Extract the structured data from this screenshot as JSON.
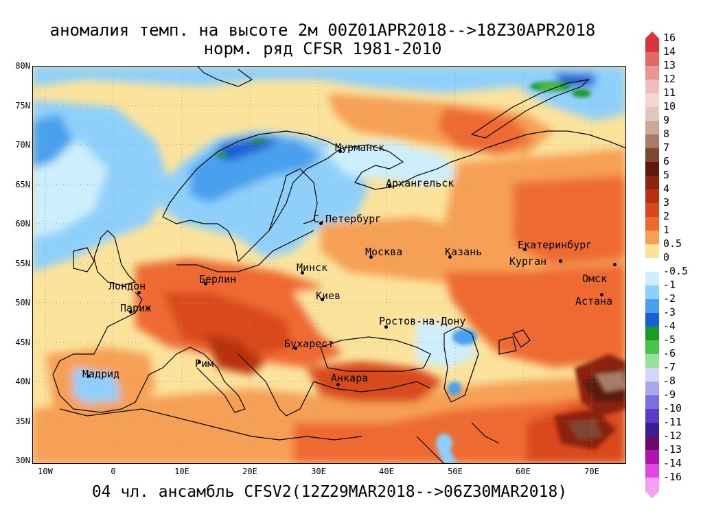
{
  "title": {
    "line1": "аномалия темп. на высоте 2м 00Z01APR2018-->18Z30APR2018",
    "line2": "норм. ряд CFSR 1981-2010"
  },
  "footer": "04 чл. ансамбль CFSV2(12Z29MAR2018-->06Z30MAR2018)",
  "lat_labels": [
    "80N",
    "75N",
    "70N",
    "65N",
    "60N",
    "55N",
    "50N",
    "45N",
    "40N",
    "35N",
    "30N"
  ],
  "lon_labels": [
    "10W",
    "0",
    "10E",
    "20E",
    "30E",
    "40E",
    "50E",
    "60E",
    "70E"
  ],
  "cities": [
    {
      "name": "Мурманск"
    },
    {
      "name": "Архангельск"
    },
    {
      "name": "С.Петербург"
    },
    {
      "name": "Москва"
    },
    {
      "name": "Казань"
    },
    {
      "name": "Екатеринбург"
    },
    {
      "name": "Курган"
    },
    {
      "name": "Омск"
    },
    {
      "name": "Астана"
    },
    {
      "name": "Минск"
    },
    {
      "name": "Берлин"
    },
    {
      "name": "Лондон"
    },
    {
      "name": "Париж"
    },
    {
      "name": "Киев"
    },
    {
      "name": "Ростов-на-Дону"
    },
    {
      "name": "Бухарест"
    },
    {
      "name": "Рим"
    },
    {
      "name": "Мадрид"
    },
    {
      "name": "Анкара"
    }
  ],
  "colorbar": {
    "labels": [
      "16",
      "14",
      "13",
      "12",
      "11",
      "10",
      "9",
      "8",
      "7",
      "6",
      "5",
      "4",
      "3",
      "2",
      "1",
      "0.5",
      "0",
      "-0.5",
      "-1",
      "-2",
      "-3",
      "-4",
      "-5",
      "-6",
      "-7",
      "-8",
      "-9",
      "-10",
      "-11",
      "-12",
      "-13",
      "-14",
      "-16"
    ],
    "colors": [
      "#d9363a",
      "#e2686a",
      "#eb9494",
      "#f2bcbc",
      "#f4d6d0",
      "#e0c8c0",
      "#c9a89a",
      "#a87a68",
      "#7e4633",
      "#5c1a0f",
      "#8b2410",
      "#b8300f",
      "#d9481c",
      "#ee6b30",
      "#f6a054",
      "#fbe39c",
      "#ffffff",
      "#cdeefc",
      "#8fd0fa",
      "#4aa0ee",
      "#1a5fd4",
      "#1c9a2a",
      "#4cc24c",
      "#96e29a",
      "#d6d6f6",
      "#a8a8ea",
      "#7b6ede",
      "#5a3cc8",
      "#3a2096",
      "#6a0a6a",
      "#b013b0",
      "#e048e0",
      "#f4a0f4"
    ]
  }
}
